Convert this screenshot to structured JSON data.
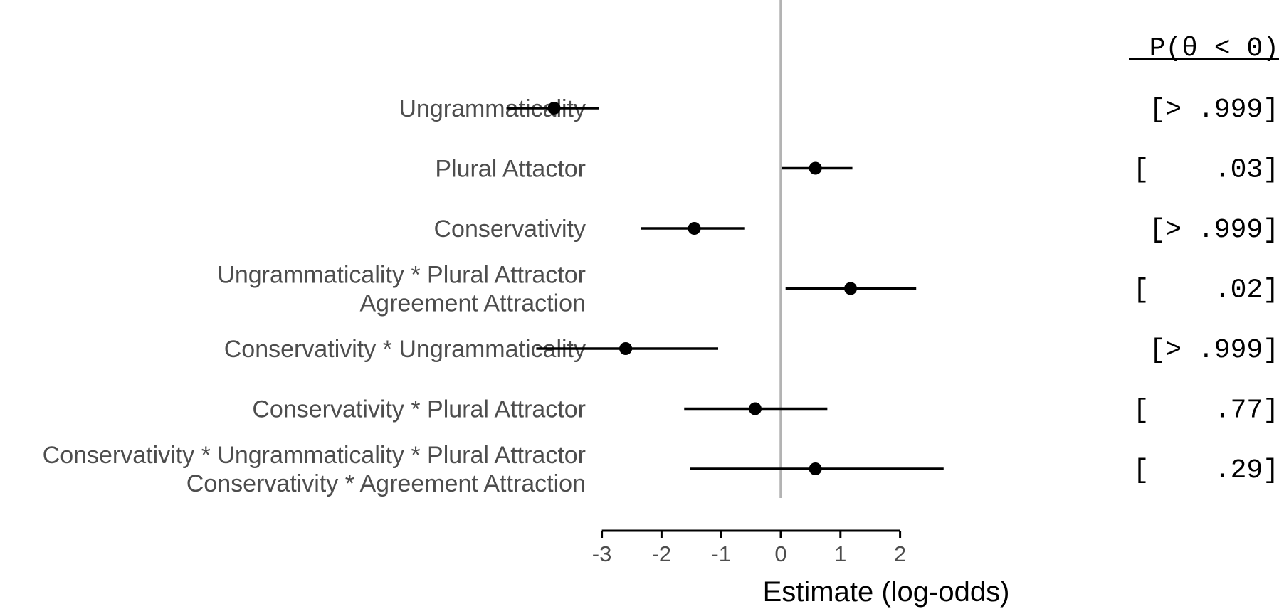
{
  "chart_data": {
    "type": "forest",
    "xlabel": "Estimate (log-odds)",
    "xlim": [
      -3,
      2
    ],
    "xticks": [
      "-3",
      "-2",
      "-1",
      "0",
      "1",
      "2"
    ],
    "prob_header": "P(θ < 0)",
    "reference_line": 0,
    "rows": [
      {
        "label": [
          "Ungrammaticality"
        ],
        "estimate": -3.8,
        "lower": -4.6,
        "upper": -3.05,
        "prob": "[> .999]"
      },
      {
        "label": [
          "Plural Attactor"
        ],
        "estimate": 0.58,
        "lower": 0.02,
        "upper": 1.2,
        "prob": "[    .03]"
      },
      {
        "label": [
          "Conservativity"
        ],
        "estimate": -1.45,
        "lower": -2.35,
        "upper": -0.6,
        "prob": "[> .999]"
      },
      {
        "label": [
          "Ungrammaticality * Plural Attractor",
          "Agreement Attraction"
        ],
        "estimate": 1.17,
        "lower": 0.08,
        "upper": 2.27,
        "prob": "[    .02]"
      },
      {
        "label": [
          "Conservativity * Ungrammaticality"
        ],
        "estimate": -2.6,
        "lower": -4.1,
        "upper": -1.05,
        "prob": "[> .999]"
      },
      {
        "label": [
          "Conservativity * Plural Attractor"
        ],
        "estimate": -0.43,
        "lower": -1.62,
        "upper": 0.78,
        "prob": "[    .77]"
      },
      {
        "label": [
          "Conservativity * Ungrammaticality * Plural Attractor",
          "Conservativity * Agreement Attraction"
        ],
        "estimate": 0.58,
        "lower": -1.52,
        "upper": 2.73,
        "prob": "[    .29]"
      }
    ]
  }
}
